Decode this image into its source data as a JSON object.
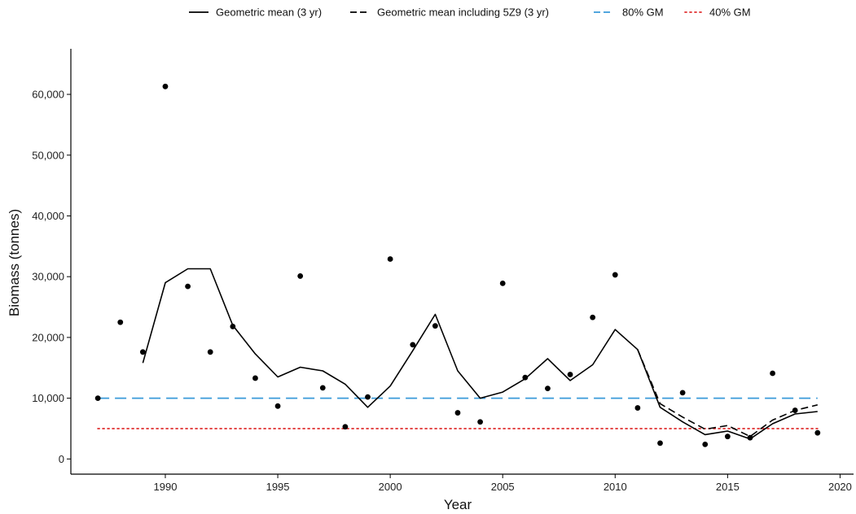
{
  "chart_data": {
    "type": "line",
    "xlabel": "Year",
    "ylabel": "Biomass (tonnes)",
    "xlim": [
      1985.8,
      2020.6
    ],
    "ylim": [
      -2500,
      67500
    ],
    "x_ticks": [
      1990,
      1995,
      2000,
      2005,
      2010,
      2015,
      2020
    ],
    "y_ticks": [
      0,
      10000,
      20000,
      30000,
      40000,
      50000,
      60000
    ],
    "x_tick_labels": [
      "1990",
      "1995",
      "2000",
      "2005",
      "2010",
      "2015",
      "2020"
    ],
    "y_tick_labels": [
      "0",
      "10,000",
      "20,000",
      "30,000",
      "40,000",
      "50,000",
      "60,000"
    ],
    "grid": false,
    "legend_position": "top",
    "legend": [
      {
        "label": "Geometric mean (3 yr)",
        "style": "solid",
        "color": "#000000"
      },
      {
        "label": "Geometric mean including 5Z9 (3 yr)",
        "style": "dashed",
        "color": "#000000"
      },
      {
        "label": "80% GM",
        "style": "dashed",
        "color": "#3a9ad9"
      },
      {
        "label": "40% GM",
        "style": "dotted",
        "color": "#e03030"
      }
    ],
    "points": {
      "x": [
        1987,
        1988,
        1989,
        1990,
        1991,
        1992,
        1993,
        1994,
        1995,
        1996,
        1997,
        1998,
        1999,
        2000,
        2001,
        2002,
        2003,
        2004,
        2005,
        2006,
        2007,
        2008,
        2009,
        2010,
        2011,
        2012,
        2013,
        2014,
        2015,
        2016,
        2017,
        2018,
        2019
      ],
      "y": [
        10000,
        22500,
        17600,
        61300,
        28400,
        17600,
        21800,
        13300,
        8700,
        30100,
        11700,
        5300,
        10200,
        32900,
        18800,
        21900,
        7600,
        6100,
        28900,
        13400,
        11600,
        13900,
        23300,
        30300,
        8400,
        2600,
        10900,
        2400,
        3700,
        3500,
        14100,
        8000,
        4300
      ]
    },
    "series": [
      {
        "name": "Geometric mean (3 yr)",
        "x": [
          1989,
          1990,
          1991,
          1992,
          1993,
          1994,
          1995,
          1996,
          1997,
          1998,
          1999,
          2000,
          2001,
          2002,
          2003,
          2004,
          2005,
          2006,
          2007,
          2008,
          2009,
          2010,
          2011,
          2012,
          2013,
          2014,
          2015,
          2016,
          2017,
          2018,
          2019
        ],
        "y": [
          15800,
          29000,
          31300,
          31300,
          22000,
          17300,
          13500,
          15100,
          14500,
          12300,
          8500,
          12000,
          17800,
          23800,
          14500,
          10000,
          11000,
          13200,
          16500,
          12900,
          15500,
          21300,
          18000,
          8500,
          6100,
          4000,
          4600,
          3300,
          5800,
          7400,
          7800
        ]
      },
      {
        "name": "Geometric mean including 5Z9 (3 yr)",
        "x": [
          2011,
          2012,
          2013,
          2014,
          2015,
          2016,
          2017,
          2018,
          2019
        ],
        "y": [
          18000,
          9100,
          6900,
          4900,
          5500,
          3700,
          6400,
          8000,
          8900
        ]
      },
      {
        "name": "80% GM",
        "x": [
          1987,
          2019
        ],
        "y": [
          10000,
          10000
        ]
      },
      {
        "name": "40% GM",
        "x": [
          1987,
          2019
        ],
        "y": [
          5000,
          5000
        ]
      }
    ]
  }
}
